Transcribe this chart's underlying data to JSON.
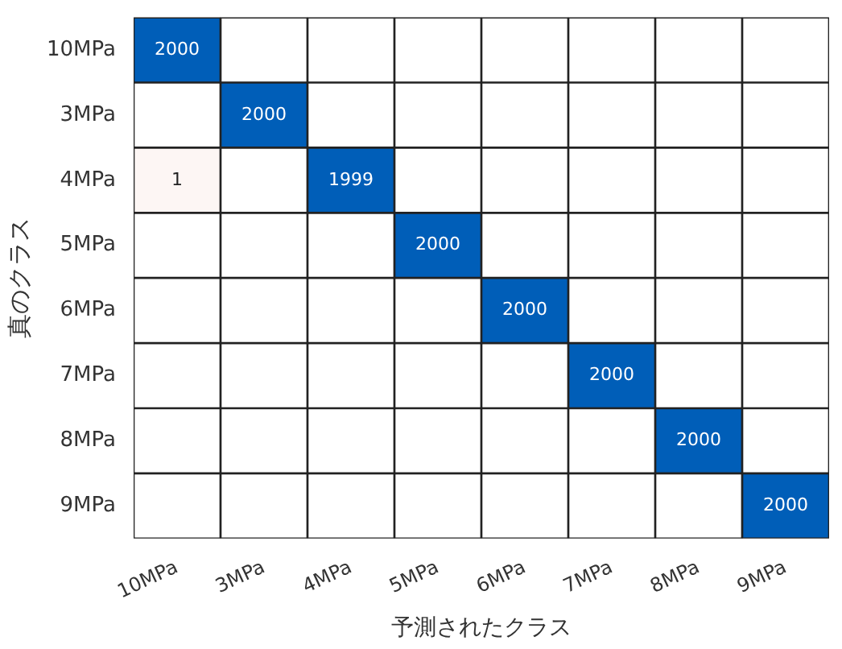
{
  "chart_data": {
    "type": "heatmap",
    "xlabel": "予測されたクラス",
    "ylabel": "真のクラス",
    "categories": [
      "10MPa",
      "3MPa",
      "4MPa",
      "5MPa",
      "6MPa",
      "7MPa",
      "8MPa",
      "9MPa"
    ],
    "y_categories": [
      "10MPa",
      "3MPa",
      "4MPa",
      "5MPa",
      "6MPa",
      "7MPa",
      "8MPa",
      "9MPa"
    ],
    "cells": [
      [
        2000,
        null,
        null,
        null,
        null,
        null,
        null,
        null
      ],
      [
        null,
        2000,
        null,
        null,
        null,
        null,
        null,
        null
      ],
      [
        1,
        null,
        1999,
        null,
        null,
        null,
        null,
        null
      ],
      [
        null,
        null,
        null,
        2000,
        null,
        null,
        null,
        null
      ],
      [
        null,
        null,
        null,
        null,
        2000,
        null,
        null,
        null
      ],
      [
        null,
        null,
        null,
        null,
        null,
        2000,
        null,
        null
      ],
      [
        null,
        null,
        null,
        null,
        null,
        null,
        2000,
        null
      ],
      [
        null,
        null,
        null,
        null,
        null,
        null,
        null,
        2000
      ]
    ],
    "data_labels": true
  }
}
